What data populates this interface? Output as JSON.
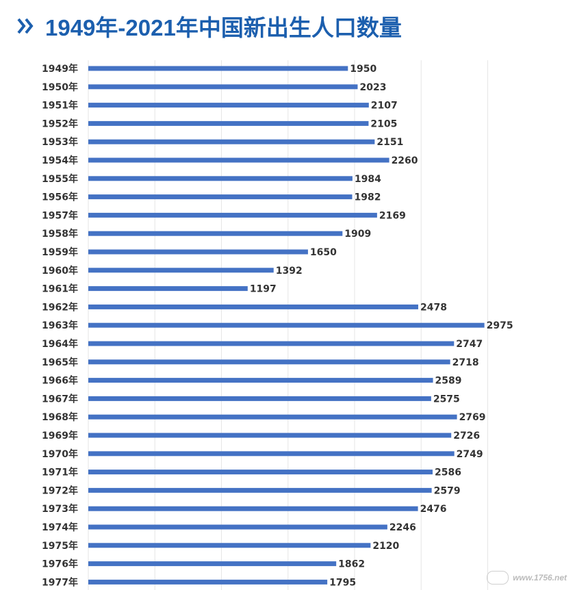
{
  "title": "1949年-2021年中国新出生人口数量",
  "watermark": "www.1756.net",
  "colors": {
    "title": "#1c5fae",
    "bar": "#4472c4",
    "label": "#333333",
    "grid": "#e6e6e6"
  },
  "chart_data": {
    "type": "bar",
    "orientation": "horizontal",
    "title": "1949年-2021年中国新出生人口数量",
    "xlabel": "",
    "ylabel": "",
    "xlim": [
      0,
      3000
    ],
    "grid": true,
    "categories": [
      "1949年",
      "1950年",
      "1951年",
      "1952年",
      "1953年",
      "1954年",
      "1955年",
      "1956年",
      "1957年",
      "1958年",
      "1959年",
      "1960年",
      "1961年",
      "1962年",
      "1963年",
      "1964年",
      "1965年",
      "1966年",
      "1967年",
      "1968年",
      "1969年",
      "1970年",
      "1971年",
      "1972年",
      "1973年",
      "1974年",
      "1975年",
      "1976年",
      "1977年"
    ],
    "values": [
      1950,
      2023,
      2107,
      2105,
      2151,
      2260,
      1984,
      1982,
      2169,
      1909,
      1650,
      1392,
      1197,
      2478,
      2975,
      2747,
      2718,
      2589,
      2575,
      2769,
      2726,
      2749,
      2586,
      2579,
      2476,
      2246,
      2120,
      1862,
      1795
    ]
  }
}
